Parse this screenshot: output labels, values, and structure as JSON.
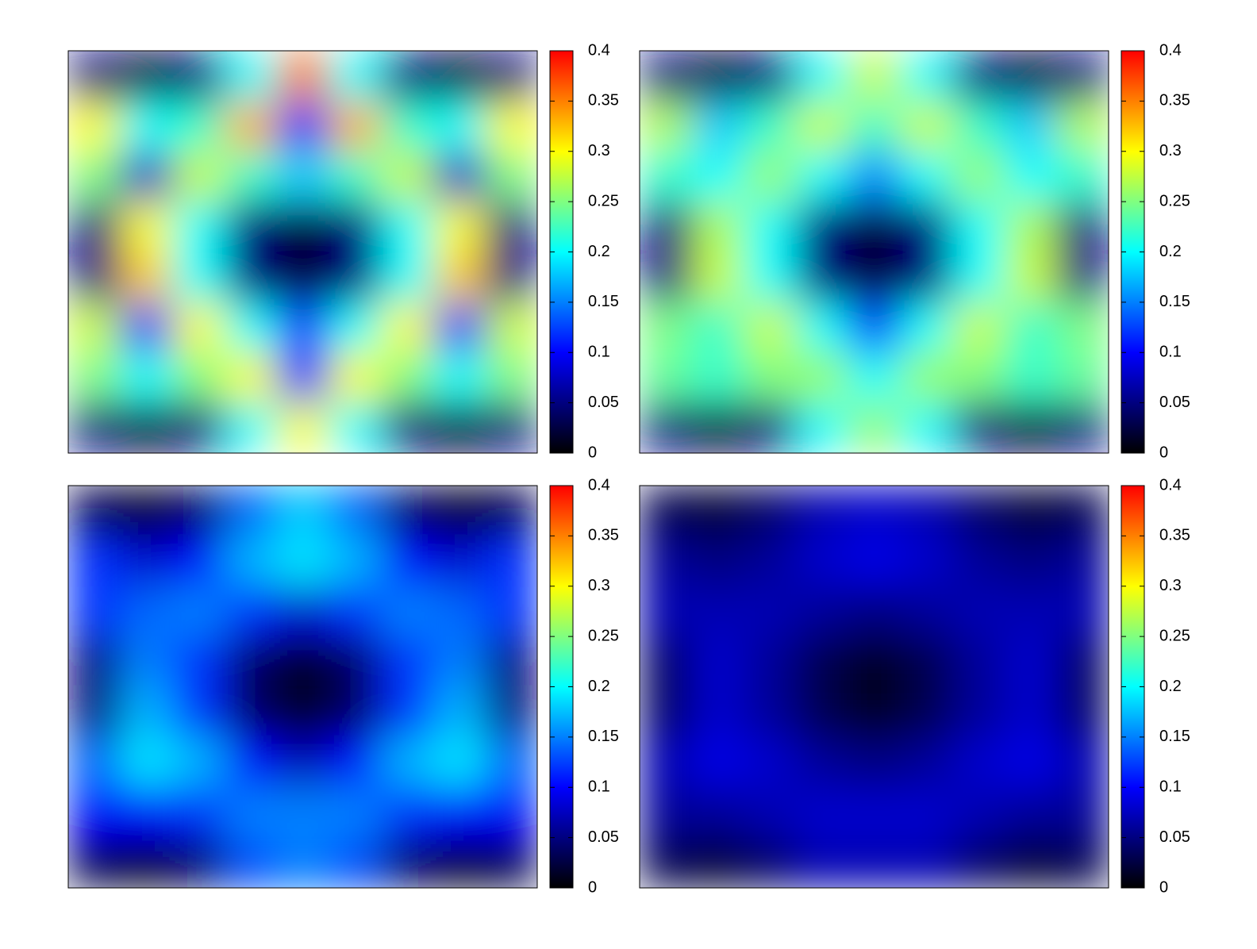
{
  "chart_data": [
    {
      "type": "heatmap",
      "zlim": [
        0,
        0.4
      ],
      "zticks": [
        0,
        0.05,
        0.1,
        0.15,
        0.2,
        0.25,
        0.3,
        0.35,
        0.4
      ],
      "colorscale": [
        "#000000",
        "#000080",
        "#0000ff",
        "#0080ff",
        "#00ffff",
        "#80ff80",
        "#ffff00",
        "#ff8000",
        "#ff0000"
      ],
      "z": [
        [
          0.05,
          0.02,
          0.05,
          0.2,
          0.35,
          0.2,
          0.05,
          0.02,
          0.05
        ],
        [
          0.3,
          0.2,
          0.22,
          0.33,
          0.1,
          0.33,
          0.22,
          0.2,
          0.3
        ],
        [
          0.25,
          0.08,
          0.28,
          0.22,
          0.18,
          0.22,
          0.28,
          0.08,
          0.25
        ],
        [
          0.05,
          0.3,
          0.2,
          0.05,
          0.02,
          0.05,
          0.2,
          0.3,
          0.05
        ],
        [
          0.05,
          0.32,
          0.2,
          0.05,
          0.02,
          0.05,
          0.2,
          0.32,
          0.05
        ],
        [
          0.28,
          0.1,
          0.3,
          0.2,
          0.12,
          0.2,
          0.3,
          0.1,
          0.28
        ],
        [
          0.25,
          0.2,
          0.25,
          0.3,
          0.1,
          0.3,
          0.25,
          0.2,
          0.25
        ],
        [
          0.05,
          0.02,
          0.05,
          0.2,
          0.3,
          0.2,
          0.05,
          0.02,
          0.05
        ]
      ]
    },
    {
      "type": "heatmap",
      "zlim": [
        0,
        0.4
      ],
      "zticks": [
        0,
        0.05,
        0.1,
        0.15,
        0.2,
        0.25,
        0.3,
        0.35,
        0.4
      ],
      "colorscale": [
        "#000000",
        "#000080",
        "#0000ff",
        "#0080ff",
        "#00ffff",
        "#80ff80",
        "#ffff00",
        "#ff8000",
        "#ff0000"
      ],
      "z": [
        [
          0.05,
          0.02,
          0.05,
          0.2,
          0.28,
          0.2,
          0.05,
          0.02,
          0.05
        ],
        [
          0.27,
          0.18,
          0.22,
          0.28,
          0.22,
          0.28,
          0.22,
          0.18,
          0.27
        ],
        [
          0.22,
          0.2,
          0.26,
          0.2,
          0.15,
          0.2,
          0.26,
          0.2,
          0.22
        ],
        [
          0.05,
          0.27,
          0.2,
          0.05,
          0.02,
          0.05,
          0.2,
          0.27,
          0.05
        ],
        [
          0.05,
          0.28,
          0.2,
          0.05,
          0.02,
          0.05,
          0.2,
          0.28,
          0.05
        ],
        [
          0.25,
          0.22,
          0.28,
          0.2,
          0.12,
          0.2,
          0.28,
          0.22,
          0.25
        ],
        [
          0.24,
          0.22,
          0.25,
          0.26,
          0.2,
          0.26,
          0.25,
          0.22,
          0.24
        ],
        [
          0.05,
          0.02,
          0.05,
          0.2,
          0.26,
          0.2,
          0.05,
          0.02,
          0.05
        ]
      ]
    },
    {
      "type": "heatmap",
      "zlim": [
        0,
        0.4
      ],
      "zticks": [
        0,
        0.05,
        0.1,
        0.15,
        0.2,
        0.25,
        0.3,
        0.35,
        0.4
      ],
      "colorscale": [
        "#000000",
        "#000080",
        "#0000ff",
        "#0080ff",
        "#00ffff",
        "#80ff80",
        "#ffff00",
        "#ff8000",
        "#ff0000"
      ],
      "z": [
        [
          0.03,
          0.01,
          0.04,
          0.14,
          0.18,
          0.14,
          0.04,
          0.01,
          0.03
        ],
        [
          0.12,
          0.08,
          0.1,
          0.17,
          0.19,
          0.17,
          0.1,
          0.08,
          0.12
        ],
        [
          0.12,
          0.14,
          0.15,
          0.12,
          0.08,
          0.12,
          0.15,
          0.14,
          0.12
        ],
        [
          0.05,
          0.15,
          0.12,
          0.04,
          0.01,
          0.04,
          0.12,
          0.15,
          0.05
        ],
        [
          0.05,
          0.17,
          0.12,
          0.04,
          0.01,
          0.04,
          0.12,
          0.17,
          0.05
        ],
        [
          0.14,
          0.19,
          0.17,
          0.1,
          0.07,
          0.1,
          0.17,
          0.19,
          0.14
        ],
        [
          0.1,
          0.1,
          0.12,
          0.15,
          0.15,
          0.15,
          0.12,
          0.1,
          0.1
        ],
        [
          0.03,
          0.01,
          0.04,
          0.13,
          0.15,
          0.13,
          0.04,
          0.01,
          0.03
        ]
      ]
    },
    {
      "type": "heatmap",
      "zlim": [
        0,
        0.4
      ],
      "zticks": [
        0,
        0.05,
        0.1,
        0.15,
        0.2,
        0.25,
        0.3,
        0.35,
        0.4
      ],
      "colorscale": [
        "#000000",
        "#000080",
        "#0000ff",
        "#0080ff",
        "#00ffff",
        "#80ff80",
        "#ffff00",
        "#ff8000",
        "#ff0000"
      ],
      "z": [
        [
          0.03,
          0.02,
          0.04,
          0.07,
          0.08,
          0.07,
          0.04,
          0.02,
          0.03
        ],
        [
          0.06,
          0.05,
          0.06,
          0.08,
          0.09,
          0.08,
          0.06,
          0.05,
          0.06
        ],
        [
          0.07,
          0.07,
          0.07,
          0.06,
          0.05,
          0.06,
          0.07,
          0.07,
          0.07
        ],
        [
          0.04,
          0.08,
          0.06,
          0.03,
          0.01,
          0.03,
          0.06,
          0.08,
          0.04
        ],
        [
          0.04,
          0.08,
          0.06,
          0.03,
          0.01,
          0.03,
          0.06,
          0.08,
          0.04
        ],
        [
          0.07,
          0.09,
          0.08,
          0.06,
          0.05,
          0.06,
          0.08,
          0.09,
          0.07
        ],
        [
          0.06,
          0.06,
          0.07,
          0.08,
          0.08,
          0.08,
          0.07,
          0.06,
          0.06
        ],
        [
          0.03,
          0.02,
          0.04,
          0.07,
          0.07,
          0.07,
          0.04,
          0.02,
          0.03
        ]
      ]
    }
  ]
}
